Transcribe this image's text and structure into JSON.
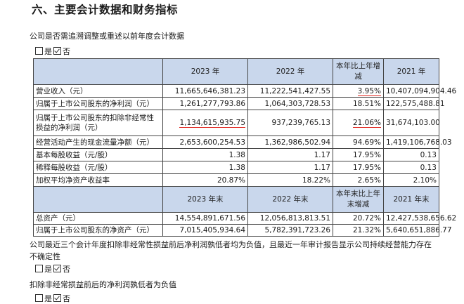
{
  "heading": "六、主要会计数据和财务指标",
  "q1": "公司是否需追溯调整或重述以前年度会计数据",
  "q1_opt_yes": "是",
  "q1_opt_no": "否",
  "table": {
    "header1": [
      "",
      "2023 年",
      "2022 年",
      "本年比上年增减",
      "2021 年"
    ],
    "rows1": [
      {
        "label": "营业收入（元）",
        "v2023": "11,665,646,381.23",
        "v2022": "11,222,541,427.55",
        "chg": "3.95%",
        "v2021": "10,407,094,904.46"
      },
      {
        "label": "归属于上市公司股东的净利润（元）",
        "v2023": "1,261,277,793.86",
        "v2022": "1,064,303,728.53",
        "chg": "18.51%",
        "v2021": "122,575,488.81"
      },
      {
        "label": "归属于上市公司股东的扣除非经常性损益的净利润（元）",
        "v2023": "1,134,615,935.75",
        "v2022": "937,239,765.13",
        "chg": "21.06%",
        "v2021": "31,674,103.00"
      },
      {
        "label": "经营活动产生的现金流量净额（元）",
        "v2023": "2,653,600,254.53",
        "v2022": "1,362,986,502.94",
        "chg": "94.69%",
        "v2021": "1,419,106,768.03"
      },
      {
        "label": "基本每股收益（元/股）",
        "v2023": "1.38",
        "v2022": "1.17",
        "chg": "17.95%",
        "v2021": "0.13"
      },
      {
        "label": "稀释每股收益（元/股）",
        "v2023": "1.38",
        "v2022": "1.17",
        "chg": "17.95%",
        "v2021": "0.13"
      },
      {
        "label": "加权平均净资产收益率",
        "v2023": "20.87%",
        "v2022": "18.22%",
        "chg": "2.65%",
        "v2021": "2.10%"
      }
    ],
    "header2": [
      "",
      "2023 年末",
      "2022 年末",
      "本年末比上年末增减",
      "2021 年末"
    ],
    "rows2": [
      {
        "label": "总资产（元）",
        "v2023": "14,554,891,671.56",
        "v2022": "12,056,813,813.51",
        "chg": "20.72%",
        "v2021": "12,427,538,656.62"
      },
      {
        "label": "归属于上市公司股东的净资产（元）",
        "v2023": "7,015,405,934.64",
        "v2022": "5,782,391,723.26",
        "chg": "21.32%",
        "v2021": "5,640,651,886.77"
      }
    ]
  },
  "q2": "公司最近三个会计年度扣除非经常性损益前后净利润孰低者均为负值，且最近一年审计报告显示公司持续经营能力存在不确定性",
  "q2_opt_yes": "是",
  "q2_opt_no": "否",
  "q3": "扣除非经常损益前后的净利润孰低者为负值",
  "q3_opt_yes": "是",
  "q3_opt_no": "否",
  "accent_underline_color": "#e0221b",
  "header_fill_color": "#c9d7ec"
}
